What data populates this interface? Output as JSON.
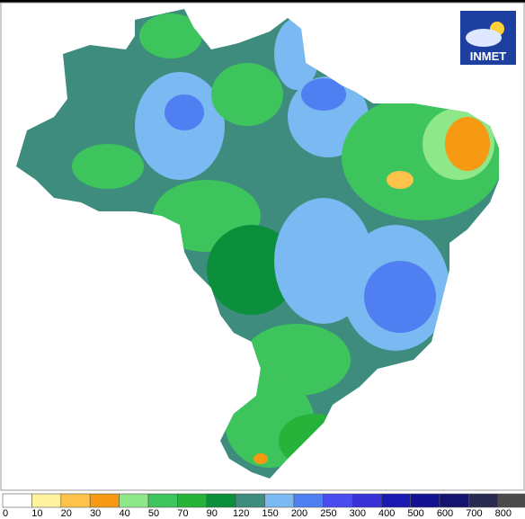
{
  "logo": {
    "text": "INMET"
  },
  "legend": {
    "labels": [
      0,
      10,
      20,
      30,
      40,
      50,
      70,
      90,
      120,
      150,
      200,
      250,
      300,
      400,
      500,
      600,
      700,
      800
    ],
    "colors": [
      "#ffffff",
      "#fff3a0",
      "#ffc24a",
      "#f59a12",
      "#8ee88a",
      "#3ec45c",
      "#27b23a",
      "#0b8f3a",
      "#3d8c7e",
      "#7ab9f2",
      "#4f7ff0",
      "#4a4cf0",
      "#3a30d8",
      "#1a1ab0",
      "#121290",
      "#14146e",
      "#2a2a50",
      "#4a4a4a"
    ]
  }
}
